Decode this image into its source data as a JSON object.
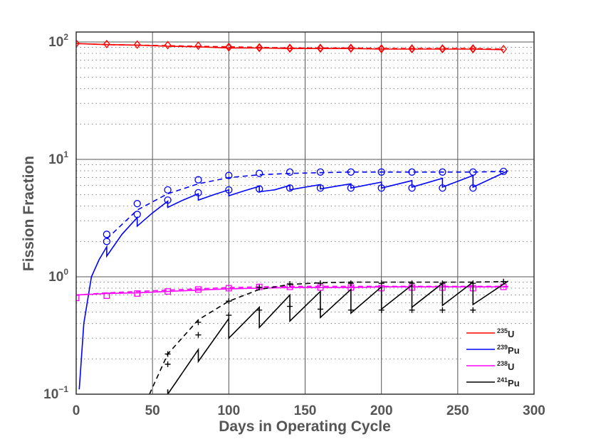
{
  "chart_data": {
    "type": "line",
    "title": "",
    "xlabel": "Days in Operating Cycle",
    "ylabel": "Fission Fraction",
    "xlim": [
      0,
      300
    ],
    "ylim": [
      0.1,
      100
    ],
    "yscale": "log",
    "xticks": [
      "0",
      "50",
      "100",
      "150",
      "200",
      "250",
      "300"
    ],
    "xtick_values": [
      0,
      50,
      100,
      150,
      200,
      250,
      300
    ],
    "yticks": [
      {
        "base": "10",
        "exp": "2",
        "value": 100
      },
      {
        "base": "10",
        "exp": "1",
        "value": 10
      },
      {
        "base": "10",
        "exp": "0",
        "value": 1
      },
      {
        "base": "10",
        "exp": "−1",
        "value": 0.1
      }
    ],
    "grid": true,
    "legend_position": "bottom-right",
    "series": [
      {
        "name": "235U",
        "mass": "235",
        "element": "U",
        "color": "#ff0000",
        "marker": "diamond",
        "solid": [
          [
            0,
            97
          ],
          [
            20,
            95
          ],
          [
            40,
            94
          ],
          [
            60,
            92
          ],
          [
            80,
            91
          ],
          [
            100,
            89
          ],
          [
            120,
            89
          ],
          [
            140,
            88
          ],
          [
            160,
            88
          ],
          [
            180,
            88
          ],
          [
            200,
            87
          ],
          [
            220,
            87
          ],
          [
            240,
            87
          ],
          [
            260,
            87
          ],
          [
            280,
            86
          ]
        ],
        "dashed": [
          [
            0,
            97
          ],
          [
            20,
            95
          ],
          [
            40,
            94
          ],
          [
            60,
            93
          ],
          [
            80,
            92
          ],
          [
            100,
            91
          ],
          [
            120,
            90
          ],
          [
            140,
            89
          ],
          [
            160,
            89
          ],
          [
            180,
            89
          ],
          [
            200,
            88
          ],
          [
            220,
            88
          ],
          [
            240,
            88
          ],
          [
            260,
            88
          ],
          [
            280,
            87
          ]
        ],
        "markers": [
          [
            0,
            97
          ],
          [
            20,
            96
          ],
          [
            40,
            95
          ],
          [
            60,
            94
          ],
          [
            80,
            93
          ],
          [
            100,
            91
          ],
          [
            100,
            90
          ],
          [
            120,
            90
          ],
          [
            120,
            89
          ],
          [
            140,
            89
          ],
          [
            140,
            88
          ],
          [
            160,
            89
          ],
          [
            160,
            88
          ],
          [
            180,
            89
          ],
          [
            180,
            88
          ],
          [
            200,
            88
          ],
          [
            200,
            87
          ],
          [
            220,
            88
          ],
          [
            220,
            87
          ],
          [
            240,
            88
          ],
          [
            240,
            87
          ],
          [
            260,
            88
          ],
          [
            260,
            87
          ],
          [
            280,
            87
          ]
        ]
      },
      {
        "name": "239Pu",
        "mass": "239",
        "element": "Pu",
        "color": "#0000ff",
        "marker": "circle",
        "solid": [
          [
            2,
            0.11
          ],
          [
            5,
            0.4
          ],
          [
            10,
            1.0
          ],
          [
            15,
            1.4
          ],
          [
            20,
            1.8
          ],
          [
            20,
            1.5
          ],
          [
            30,
            2.3
          ],
          [
            40,
            3.2
          ],
          [
            40,
            2.7
          ],
          [
            50,
            3.5
          ],
          [
            60,
            4.4
          ],
          [
            60,
            3.9
          ],
          [
            70,
            4.5
          ],
          [
            80,
            5.1
          ],
          [
            80,
            4.5
          ],
          [
            90,
            5.0
          ],
          [
            100,
            5.5
          ],
          [
            100,
            4.9
          ],
          [
            110,
            5.4
          ],
          [
            120,
            5.9
          ],
          [
            120,
            5.3
          ],
          [
            130,
            5.5
          ],
          [
            140,
            6.0
          ],
          [
            140,
            5.5
          ],
          [
            150,
            5.8
          ],
          [
            160,
            6.1
          ],
          [
            160,
            5.6
          ],
          [
            170,
            5.9
          ],
          [
            180,
            6.2
          ],
          [
            180,
            5.7
          ],
          [
            200,
            6.4
          ],
          [
            200,
            5.7
          ],
          [
            220,
            6.6
          ],
          [
            220,
            5.8
          ],
          [
            240,
            6.9
          ],
          [
            240,
            5.8
          ],
          [
            260,
            7.3
          ],
          [
            260,
            5.8
          ],
          [
            283,
            8.0
          ]
        ],
        "dashed": [
          [
            20,
            2.1
          ],
          [
            40,
            3.7
          ],
          [
            60,
            5.1
          ],
          [
            80,
            6.2
          ],
          [
            100,
            7.0
          ],
          [
            120,
            7.4
          ],
          [
            140,
            7.6
          ],
          [
            160,
            7.7
          ],
          [
            180,
            7.8
          ],
          [
            200,
            7.8
          ],
          [
            220,
            7.8
          ],
          [
            240,
            7.8
          ],
          [
            260,
            7.8
          ],
          [
            280,
            7.9
          ]
        ],
        "markers": [
          [
            20,
            2.3
          ],
          [
            20,
            2.0
          ],
          [
            40,
            4.2
          ],
          [
            40,
            3.4
          ],
          [
            60,
            5.5
          ],
          [
            60,
            4.5
          ],
          [
            80,
            6.7
          ],
          [
            80,
            5.2
          ],
          [
            100,
            7.3
          ],
          [
            100,
            5.5
          ],
          [
            120,
            7.6
          ],
          [
            120,
            5.6
          ],
          [
            140,
            7.8
          ],
          [
            140,
            5.7
          ],
          [
            160,
            7.8
          ],
          [
            160,
            5.7
          ],
          [
            180,
            7.8
          ],
          [
            180,
            5.7
          ],
          [
            200,
            7.8
          ],
          [
            200,
            5.7
          ],
          [
            220,
            7.8
          ],
          [
            220,
            5.7
          ],
          [
            240,
            7.8
          ],
          [
            240,
            5.7
          ],
          [
            260,
            7.8
          ],
          [
            260,
            5.7
          ],
          [
            280,
            7.9
          ]
        ]
      },
      {
        "name": "238U",
        "mass": "238",
        "element": "U",
        "color": "#ff00ff",
        "marker": "square",
        "solid": [
          [
            0,
            0.7
          ],
          [
            20,
            0.72
          ],
          [
            40,
            0.73
          ],
          [
            60,
            0.75
          ],
          [
            80,
            0.77
          ],
          [
            100,
            0.79
          ],
          [
            120,
            0.8
          ],
          [
            140,
            0.81
          ],
          [
            160,
            0.81
          ],
          [
            180,
            0.81
          ],
          [
            200,
            0.82
          ],
          [
            220,
            0.82
          ],
          [
            240,
            0.82
          ],
          [
            260,
            0.82
          ],
          [
            283,
            0.82
          ]
        ],
        "dashed": [
          [
            0,
            0.7
          ],
          [
            20,
            0.73
          ],
          [
            40,
            0.75
          ],
          [
            60,
            0.77
          ],
          [
            80,
            0.79
          ],
          [
            100,
            0.81
          ],
          [
            120,
            0.82
          ],
          [
            140,
            0.83
          ],
          [
            160,
            0.83
          ],
          [
            180,
            0.83
          ],
          [
            200,
            0.83
          ],
          [
            220,
            0.83
          ],
          [
            240,
            0.83
          ],
          [
            260,
            0.83
          ],
          [
            283,
            0.83
          ]
        ],
        "markers": [
          [
            0,
            0.66
          ],
          [
            20,
            0.69
          ],
          [
            40,
            0.72
          ],
          [
            60,
            0.75
          ],
          [
            80,
            0.78
          ],
          [
            100,
            0.8
          ],
          [
            120,
            0.82
          ],
          [
            140,
            0.82
          ],
          [
            160,
            0.81
          ],
          [
            180,
            0.81
          ],
          [
            200,
            0.8
          ],
          [
            220,
            0.81
          ],
          [
            240,
            0.81
          ],
          [
            260,
            0.8
          ],
          [
            280,
            0.82
          ]
        ]
      },
      {
        "name": "241Pu",
        "mass": "241",
        "element": "Pu",
        "color": "#000000",
        "marker": "plus",
        "solid": [
          [
            60,
            0.11
          ],
          [
            60,
            0.1
          ],
          [
            80,
            0.24
          ],
          [
            80,
            0.19
          ],
          [
            100,
            0.44
          ],
          [
            100,
            0.3
          ],
          [
            120,
            0.55
          ],
          [
            120,
            0.37
          ],
          [
            140,
            0.7
          ],
          [
            140,
            0.42
          ],
          [
            160,
            0.75
          ],
          [
            160,
            0.45
          ],
          [
            180,
            0.78
          ],
          [
            180,
            0.49
          ],
          [
            200,
            0.82
          ],
          [
            200,
            0.53
          ],
          [
            220,
            0.85
          ],
          [
            220,
            0.55
          ],
          [
            240,
            0.88
          ],
          [
            240,
            0.57
          ],
          [
            260,
            0.9
          ],
          [
            260,
            0.58
          ],
          [
            283,
            0.92
          ]
        ],
        "dashed": [
          [
            48,
            0.1
          ],
          [
            60,
            0.22
          ],
          [
            80,
            0.43
          ],
          [
            100,
            0.62
          ],
          [
            120,
            0.78
          ],
          [
            140,
            0.86
          ],
          [
            160,
            0.89
          ],
          [
            180,
            0.9
          ],
          [
            200,
            0.9
          ],
          [
            220,
            0.9
          ],
          [
            240,
            0.9
          ],
          [
            260,
            0.9
          ],
          [
            280,
            0.91
          ]
        ],
        "markers": [
          [
            60,
            0.22
          ],
          [
            60,
            0.18
          ],
          [
            80,
            0.41
          ],
          [
            80,
            0.32
          ],
          [
            100,
            0.62
          ],
          [
            100,
            0.47
          ],
          [
            120,
            0.81
          ],
          [
            120,
            0.52
          ],
          [
            140,
            0.87
          ],
          [
            140,
            0.56
          ],
          [
            160,
            0.88
          ],
          [
            160,
            0.53
          ],
          [
            180,
            0.88
          ],
          [
            180,
            0.52
          ],
          [
            200,
            0.88
          ],
          [
            200,
            0.52
          ],
          [
            220,
            0.88
          ],
          [
            220,
            0.52
          ],
          [
            240,
            0.88
          ],
          [
            240,
            0.52
          ],
          [
            260,
            0.88
          ],
          [
            260,
            0.52
          ],
          [
            280,
            0.91
          ]
        ]
      }
    ]
  }
}
